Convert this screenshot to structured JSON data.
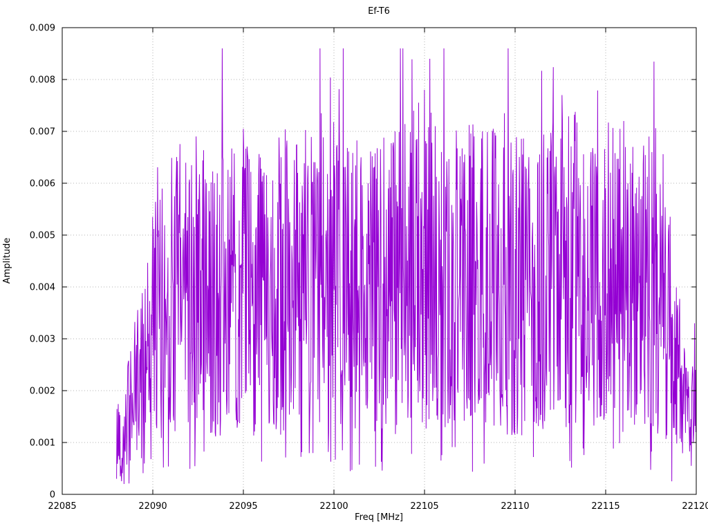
{
  "chart_data": {
    "type": "line",
    "title": "Ef-T6",
    "xlabel": "Freq [MHz]",
    "ylabel": "Amplitude",
    "xlim": [
      22085,
      22120
    ],
    "ylim": [
      0,
      0.009
    ],
    "x_ticks": [
      22085,
      22090,
      22095,
      22100,
      22105,
      22110,
      22115,
      22120
    ],
    "y_ticks": [
      0,
      0.001,
      0.002,
      0.003,
      0.004,
      0.005,
      0.006,
      0.007,
      0.008,
      0.009
    ],
    "grid": true,
    "grid_style": "dotted",
    "grid_color": "#b0b0b0",
    "line_color": "#9400D3",
    "border_color": "#000000",
    "legend": "none",
    "series_name": "Ef-T6",
    "signal": {
      "description": "Dense noisy amplitude spectrum from 22088 to 22120 MHz, mean amplitude ~0.0035-0.004, noise band ~0.001-0.006, onset ramp at 22088-22090, rolloff after 22119",
      "x_start": 22088.0,
      "x_end": 22120.0,
      "n_points": 1400,
      "seed": 42,
      "y_floor": 0.0002,
      "y_cap": 0.0086,
      "envelope_x": [
        22088,
        22088.6,
        22089.2,
        22090,
        22091,
        22092,
        22094,
        22096,
        22098,
        22100,
        22102,
        22104,
        22105,
        22106,
        22108,
        22110,
        22112,
        22114,
        22116,
        22117.5,
        22118.5,
        22119.2,
        22119.7,
        22120
      ],
      "envelope_y": [
        0.001,
        0.0014,
        0.002,
        0.003,
        0.0036,
        0.0038,
        0.0036,
        0.0037,
        0.0039,
        0.0037,
        0.0038,
        0.0039,
        0.0042,
        0.0038,
        0.0039,
        0.0037,
        0.004,
        0.004,
        0.0038,
        0.0036,
        0.003,
        0.002,
        0.0013,
        0.0016
      ],
      "peaks": [
        [
          22089.3,
          0.0028
        ],
        [
          22090.0,
          0.00535
        ],
        [
          22091.3,
          0.0061
        ],
        [
          22092.0,
          0.006
        ],
        [
          22093.4,
          0.006
        ],
        [
          22095.0,
          0.00705
        ],
        [
          22096.2,
          0.0054
        ],
        [
          22097.5,
          0.0057
        ],
        [
          22098.0,
          0.0062
        ],
        [
          22098.8,
          0.006
        ],
        [
          22099.3,
          0.00735
        ],
        [
          22100.3,
          0.00672
        ],
        [
          22101.5,
          0.0065
        ],
        [
          22103.0,
          0.0059
        ],
        [
          22105.0,
          0.0078
        ],
        [
          22105.3,
          0.0084
        ],
        [
          22105.6,
          0.0071
        ],
        [
          22107.0,
          0.0057
        ],
        [
          22108.2,
          0.007
        ],
        [
          22108.8,
          0.00705
        ],
        [
          22109.4,
          0.00735
        ],
        [
          22110.8,
          0.0059
        ],
        [
          22112.0,
          0.0067
        ],
        [
          22112.6,
          0.0077
        ],
        [
          22113.5,
          0.0061
        ],
        [
          22114.2,
          0.0066
        ],
        [
          22115.0,
          0.0059
        ],
        [
          22116.0,
          0.0072
        ],
        [
          22116.5,
          0.0067
        ],
        [
          22117.4,
          0.0069
        ],
        [
          22118.5,
          0.0052
        ],
        [
          22119.95,
          0.0024
        ]
      ]
    }
  }
}
